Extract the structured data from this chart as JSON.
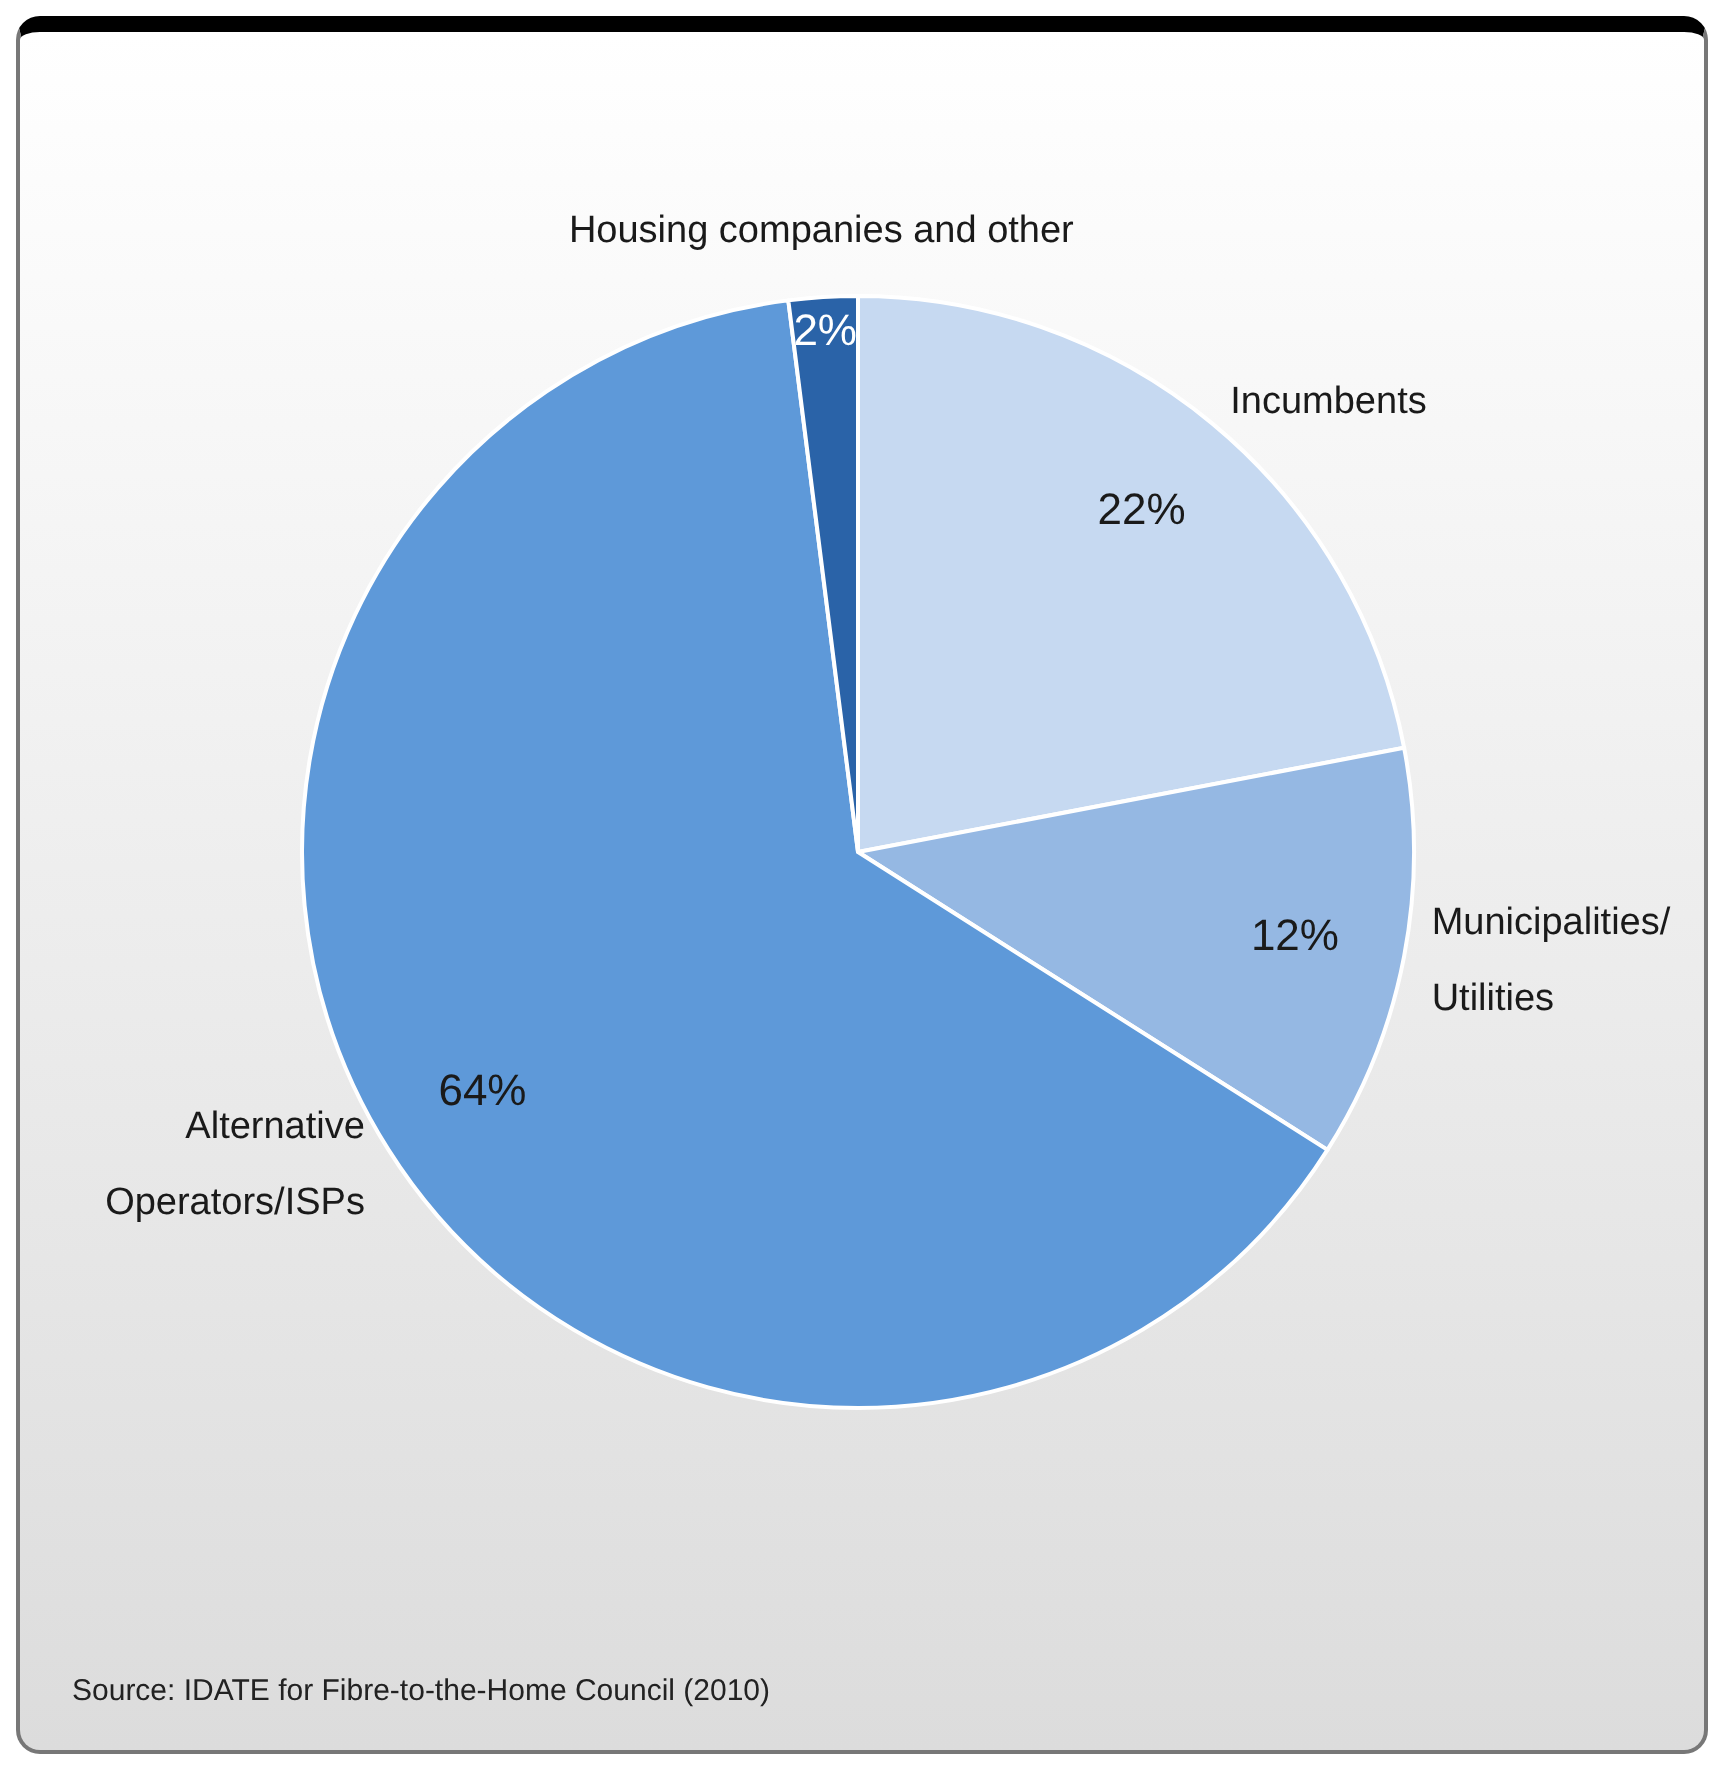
{
  "chart_data": {
    "type": "pie",
    "categories": [
      "Incumbents",
      "Municipalities/\nUtilities",
      "Alternative\nOperators/ISPs",
      "Housing companies and other"
    ],
    "values": [
      22,
      12,
      64,
      2
    ],
    "colors": [
      "#c6d9f1",
      "#95b8e3",
      "#5e99d9",
      "#2a63a8"
    ],
    "value_labels": [
      "22%",
      "12%",
      "64%",
      "2%"
    ],
    "legend": false,
    "annotations": [
      "Source: IDATE for Fibre-to-the-Home Council (2010)"
    ]
  }
}
